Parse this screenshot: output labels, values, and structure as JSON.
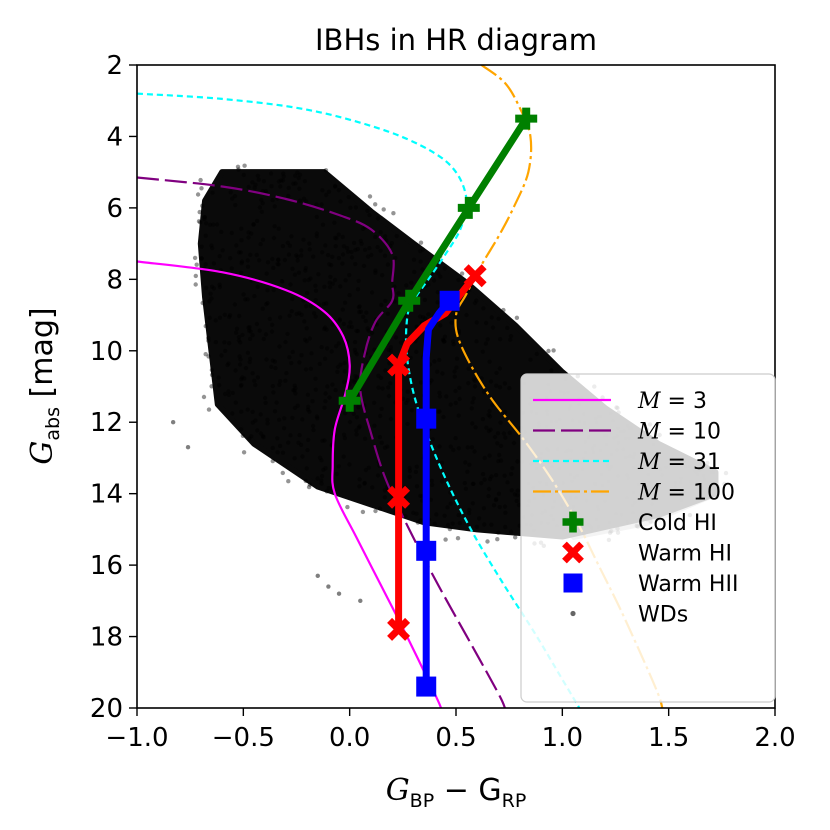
{
  "chart_data": {
    "type": "scatter",
    "title": "IBHs in HR diagram",
    "xlabel": {
      "main": "G",
      "sub1": "BP",
      "minus": " − G",
      "sub2": "RP"
    },
    "ylabel": {
      "main": "G",
      "sub": "abs",
      "unit": " [mag]"
    },
    "xlim": [
      -1.0,
      2.0
    ],
    "ylim": [
      20,
      2
    ],
    "y_inverted": true,
    "xticks": [
      -1.0,
      -0.5,
      0.0,
      0.5,
      1.0,
      1.5,
      2.0
    ],
    "xtick_labels": [
      "−1.0",
      "−0.5",
      "0.0",
      "0.5",
      "1.0",
      "1.5",
      "2.0"
    ],
    "yticks": [
      2,
      4,
      6,
      8,
      10,
      12,
      14,
      16,
      18,
      20
    ],
    "ytick_labels": [
      "2",
      "4",
      "6",
      "8",
      "10",
      "12",
      "14",
      "16",
      "18",
      "20"
    ],
    "grid": false,
    "legend_position": "lower-right",
    "tracks": [
      {
        "name": "M = 3",
        "label_prefix": "M",
        "label_value": " = 3",
        "color": "#ff00ff",
        "dash": "none",
        "points": [
          [
            -1.0,
            7.5
          ],
          [
            -0.6,
            7.8
          ],
          [
            -0.3,
            8.3
          ],
          [
            -0.12,
            8.9
          ],
          [
            -0.03,
            9.6
          ],
          [
            0.0,
            10.4
          ],
          [
            -0.02,
            11.2
          ],
          [
            -0.07,
            12.2
          ],
          [
            -0.08,
            13.2
          ],
          [
            -0.07,
            14.0
          ],
          [
            0.03,
            15.2
          ],
          [
            0.15,
            16.6
          ],
          [
            0.27,
            18.0
          ],
          [
            0.4,
            19.6
          ],
          [
            0.43,
            20.0
          ]
        ]
      },
      {
        "name": "M = 10",
        "label_prefix": "M",
        "label_value": " = 10",
        "color": "#800080",
        "dash": "22,6",
        "points": [
          [
            -1.0,
            5.15
          ],
          [
            -0.6,
            5.4
          ],
          [
            -0.3,
            5.75
          ],
          [
            -0.05,
            6.2
          ],
          [
            0.1,
            6.6
          ],
          [
            0.2,
            7.3
          ],
          [
            0.2,
            8.1
          ],
          [
            0.2,
            8.6
          ],
          [
            0.12,
            9.2
          ],
          [
            0.07,
            10.1
          ],
          [
            0.05,
            11.1
          ],
          [
            0.1,
            12.3
          ],
          [
            0.17,
            13.6
          ],
          [
            0.28,
            15.0
          ],
          [
            0.42,
            16.6
          ],
          [
            0.57,
            18.2
          ],
          [
            0.7,
            19.6
          ],
          [
            0.73,
            20.0
          ]
        ]
      },
      {
        "name": "M = 31",
        "label_prefix": "M",
        "label_value": " = 31",
        "color": "#00ffff",
        "dash": "6,4",
        "points": [
          [
            -1.0,
            2.8
          ],
          [
            -0.6,
            2.95
          ],
          [
            -0.2,
            3.25
          ],
          [
            0.15,
            3.8
          ],
          [
            0.38,
            4.4
          ],
          [
            0.5,
            5.0
          ],
          [
            0.55,
            5.8
          ],
          [
            0.52,
            6.6
          ],
          [
            0.45,
            7.3
          ],
          [
            0.37,
            8.0
          ],
          [
            0.3,
            8.6
          ],
          [
            0.27,
            9.1
          ],
          [
            0.27,
            10.2
          ],
          [
            0.32,
            11.6
          ],
          [
            0.43,
            13.3
          ],
          [
            0.57,
            15.0
          ],
          [
            0.72,
            16.5
          ],
          [
            0.87,
            17.9
          ],
          [
            1.0,
            19.2
          ],
          [
            1.08,
            20.0
          ]
        ]
      },
      {
        "name": "M = 100",
        "label_prefix": "M",
        "label_value": " = 100",
        "color": "#ffa500",
        "dash": "18,4,3,4",
        "points": [
          [
            0.62,
            2.0
          ],
          [
            0.73,
            2.5
          ],
          [
            0.8,
            3.2
          ],
          [
            0.85,
            4.0
          ],
          [
            0.84,
            5.0
          ],
          [
            0.77,
            6.0
          ],
          [
            0.7,
            6.8
          ],
          [
            0.62,
            7.6
          ],
          [
            0.55,
            8.4
          ],
          [
            0.5,
            9.0
          ],
          [
            0.52,
            9.8
          ],
          [
            0.65,
            11.2
          ],
          [
            0.82,
            12.5
          ],
          [
            0.95,
            13.6
          ],
          [
            1.07,
            14.8
          ],
          [
            1.17,
            16.0
          ],
          [
            1.27,
            17.2
          ],
          [
            1.37,
            18.5
          ],
          [
            1.45,
            19.6
          ],
          [
            1.47,
            20.0
          ]
        ]
      }
    ],
    "ibh_series": [
      {
        "name": "Cold HI",
        "color": "#008000",
        "marker": "plus",
        "line_width": 7,
        "points": [
          [
            0.0,
            11.4
          ],
          [
            0.28,
            8.6
          ],
          [
            0.56,
            6.0
          ],
          [
            0.83,
            3.5
          ]
        ]
      },
      {
        "name": "Warm HI",
        "color": "#ff0000",
        "marker": "x",
        "line_width": 7,
        "points": [
          [
            0.59,
            7.9
          ],
          [
            0.45,
            8.95
          ],
          [
            0.35,
            9.3
          ],
          [
            0.27,
            9.8
          ],
          [
            0.23,
            10.4
          ],
          [
            0.23,
            14.1
          ],
          [
            0.23,
            17.8
          ]
        ]
      },
      {
        "name": "Warm HII",
        "color": "#0000ff",
        "marker": "square",
        "line_width": 7,
        "points": [
          [
            0.47,
            8.6
          ],
          [
            0.42,
            8.95
          ],
          [
            0.37,
            9.4
          ],
          [
            0.36,
            10.2
          ],
          [
            0.36,
            11.9
          ],
          [
            0.36,
            15.6
          ],
          [
            0.36,
            19.4
          ]
        ]
      }
    ],
    "ibh_marker_points": {
      "Cold HI": [
        [
          0.0,
          11.4
        ],
        [
          0.28,
          8.6
        ],
        [
          0.56,
          6.0
        ],
        [
          0.83,
          3.5
        ]
      ],
      "Warm HI": [
        [
          0.59,
          7.9
        ],
        [
          0.23,
          10.4
        ],
        [
          0.23,
          14.1
        ],
        [
          0.23,
          17.8
        ]
      ],
      "Warm HII": [
        [
          0.47,
          8.6
        ],
        [
          0.36,
          11.9
        ],
        [
          0.36,
          15.6
        ],
        [
          0.36,
          19.4
        ]
      ]
    },
    "background_points": {
      "name": "WDs",
      "color": "#000000",
      "main_sequence_polygon": [
        [
          -0.6,
          5.0
        ],
        [
          -0.12,
          5.0
        ],
        [
          0.1,
          6.1
        ],
        [
          0.3,
          7.0
        ],
        [
          0.55,
          8.1
        ],
        [
          0.78,
          9.3
        ],
        [
          1.0,
          10.6
        ],
        [
          1.2,
          11.6
        ],
        [
          1.45,
          12.6
        ],
        [
          1.72,
          13.4
        ],
        [
          1.72,
          14.0
        ],
        [
          1.45,
          14.6
        ],
        [
          1.0,
          15.2
        ],
        [
          0.6,
          15.0
        ],
        [
          0.35,
          14.8
        ],
        [
          0.1,
          14.3
        ],
        [
          -0.15,
          13.8
        ],
        [
          -0.45,
          12.6
        ],
        [
          -0.62,
          11.5
        ],
        [
          -0.65,
          10.0
        ],
        [
          -0.68,
          8.5
        ],
        [
          -0.7,
          7.0
        ],
        [
          -0.68,
          5.8
        ]
      ],
      "gray_tail_polygon": [
        [
          1.05,
          12.5
        ],
        [
          1.35,
          13.0
        ],
        [
          1.7,
          13.5
        ],
        [
          1.72,
          14.1
        ],
        [
          1.4,
          14.9
        ],
        [
          1.05,
          15.3
        ],
        [
          0.9,
          14.3
        ]
      ]
    }
  },
  "legend": [
    {
      "key": "m3",
      "kind": "line",
      "color": "#ff00ff",
      "dash": "none",
      "prefix": "M",
      "value": " = 3"
    },
    {
      "key": "m10",
      "kind": "line",
      "color": "#800080",
      "dash": "22,6",
      "prefix": "M",
      "value": " = 10"
    },
    {
      "key": "m31",
      "kind": "line",
      "color": "#00ffff",
      "dash": "6,4",
      "prefix": "M",
      "value": " = 31"
    },
    {
      "key": "m100",
      "kind": "line",
      "color": "#ffa500",
      "dash": "18,4,3,4",
      "prefix": "M",
      "value": " = 100"
    },
    {
      "key": "cold",
      "kind": "plus",
      "color": "#008000",
      "text": "Cold HI"
    },
    {
      "key": "warm",
      "kind": "x",
      "color": "#ff0000",
      "text": "Warm HI"
    },
    {
      "key": "hii",
      "kind": "square",
      "color": "#0000ff",
      "text": "Warm HII"
    },
    {
      "key": "wds",
      "kind": "dot",
      "color": "#000000",
      "text": "WDs"
    }
  ]
}
